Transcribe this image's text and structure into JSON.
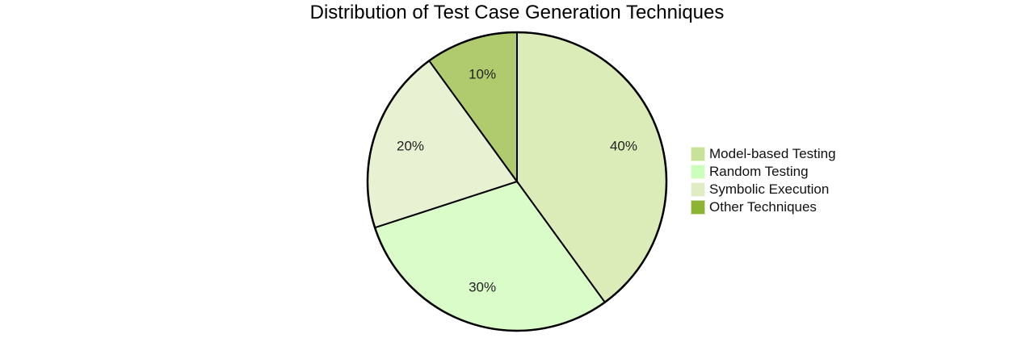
{
  "chart_data": {
    "type": "pie",
    "title": "Distribution of Test Case Generation Techniques",
    "categories": [
      "Model-based Testing",
      "Random Testing",
      "Symbolic Execution",
      "Other Techniques"
    ],
    "values": [
      40,
      30,
      20,
      10
    ],
    "labels": [
      "40%",
      "30%",
      "20%",
      "10%"
    ],
    "slice_colors": [
      "#dcecb8",
      "#d9fcc9",
      "#e8f2d3",
      "#b0cb6e"
    ],
    "legend_colors": [
      "#c9e29a",
      "#ccffbb",
      "#e0ecc4",
      "#8db332"
    ],
    "legend_position": "right",
    "start_angle": "top, clockwise"
  },
  "legend": {
    "items": [
      {
        "label": "Model-based Testing",
        "color": "#c9e29a"
      },
      {
        "label": "Random Testing",
        "color": "#ccffbb"
      },
      {
        "label": "Symbolic Execution",
        "color": "#e0ecc4"
      },
      {
        "label": "Other Techniques",
        "color": "#8db332"
      }
    ]
  }
}
